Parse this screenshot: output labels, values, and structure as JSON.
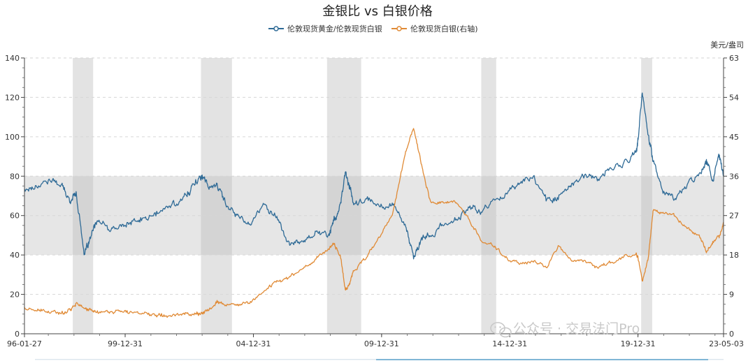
{
  "chart_data": {
    "type": "line",
    "title": "金银比 vs 白银价格",
    "legend": {
      "placement": "top-center"
    },
    "series": [
      {
        "name": "伦敦现货黄金/伦敦现货白银",
        "axis": "left",
        "color": "#2e6a96",
        "x": [
          "1996-01-27",
          "1996-07",
          "1997-01",
          "1997-07",
          "1997-11",
          "1998-02",
          "1998-06",
          "1998-08",
          "1998-12",
          "1999-06",
          "1999-12",
          "2000-06",
          "2000-12",
          "2001-06",
          "2001-12",
          "2002-06",
          "2002-10",
          "2003-01",
          "2003-04",
          "2003-08",
          "2003-12",
          "2004-06",
          "2004-12",
          "2005-06",
          "2005-12",
          "2006-06",
          "2006-12",
          "2007-06",
          "2007-12",
          "2008-03",
          "2008-06",
          "2008-08",
          "2008-10",
          "2008-12",
          "2009-06",
          "2009-12",
          "2010-06",
          "2010-12",
          "2011-04",
          "2011-08",
          "2011-12",
          "2012-06",
          "2012-12",
          "2013-06",
          "2013-12",
          "2014-06",
          "2014-12",
          "2015-06",
          "2015-12",
          "2016-06",
          "2016-12",
          "2017-06",
          "2017-12",
          "2018-06",
          "2018-12",
          "2019-06",
          "2019-12",
          "2020-01",
          "2020-03",
          "2020-06",
          "2020-08",
          "2021-01",
          "2021-06",
          "2021-12",
          "2022-06",
          "2022-09",
          "2022-12",
          "2023-03",
          "2023-05-03"
        ],
        "values": [
          73,
          75,
          78,
          76,
          67,
          72,
          40,
          46,
          58,
          52,
          55,
          57,
          59,
          62,
          66,
          70,
          78,
          80,
          74,
          76,
          66,
          60,
          56,
          66,
          59,
          45,
          47,
          52,
          50,
          58,
          66,
          82,
          75,
          65,
          68,
          65,
          66,
          56,
          38,
          48,
          50,
          55,
          58,
          64,
          62,
          68,
          72,
          77,
          80,
          68,
          70,
          76,
          80,
          78,
          84,
          86,
          92,
          98,
          122,
          100,
          88,
          72,
          68,
          76,
          82,
          88,
          78,
          90,
          80
        ]
      },
      {
        "name": "伦敦现货白银(右轴)",
        "axis": "right",
        "color": "#e08a35",
        "x": [
          "1996-01-27",
          "1996-07",
          "1997-01",
          "1997-07",
          "1997-11",
          "1998-02",
          "1998-06",
          "1998-08",
          "1998-12",
          "1999-06",
          "1999-12",
          "2000-06",
          "2000-12",
          "2001-06",
          "2001-12",
          "2002-06",
          "2002-10",
          "2003-01",
          "2003-04",
          "2003-08",
          "2003-12",
          "2004-06",
          "2004-12",
          "2005-06",
          "2005-12",
          "2006-06",
          "2006-12",
          "2007-06",
          "2007-12",
          "2008-03",
          "2008-06",
          "2008-08",
          "2008-10",
          "2008-12",
          "2009-06",
          "2009-12",
          "2010-06",
          "2010-12",
          "2011-04",
          "2011-08",
          "2011-12",
          "2012-06",
          "2012-12",
          "2013-06",
          "2013-12",
          "2014-06",
          "2014-12",
          "2015-06",
          "2015-12",
          "2016-06",
          "2016-12",
          "2017-06",
          "2017-12",
          "2018-06",
          "2018-12",
          "2019-06",
          "2019-12",
          "2020-01",
          "2020-03",
          "2020-06",
          "2020-08",
          "2021-01",
          "2021-06",
          "2021-12",
          "2022-06",
          "2022-09",
          "2022-12",
          "2023-03",
          "2023-05-03"
        ],
        "values": [
          5.9,
          5.2,
          5.0,
          4.6,
          5.6,
          7.0,
          5.8,
          5.4,
          5.1,
          5.0,
          5.0,
          4.8,
          4.6,
          4.5,
          4.3,
          4.6,
          4.6,
          4.7,
          5.2,
          7.5,
          6.5,
          6.5,
          7.3,
          9.8,
          12.0,
          13.0,
          14.8,
          17.0,
          19.4,
          20.5,
          17.2,
          10.0,
          11.5,
          14.5,
          17.5,
          22.0,
          27.0,
          41.0,
          47.0,
          38.0,
          30.0,
          30.0,
          30.0,
          26.0,
          21.0,
          20.0,
          17.0,
          16.0,
          16.5,
          15.2,
          20.0,
          16.5,
          16.8,
          15.2,
          16.2,
          17.5,
          18.2,
          17.5,
          12.0,
          18.0,
          28.0,
          27.5,
          27.0,
          24.0,
          22.0,
          18.5,
          21.0,
          22.0,
          25.5
        ]
      }
    ],
    "xlim": [
      "1996-01-27",
      "2023-05-03"
    ],
    "x_tick_labels": [
      {
        "date": "1996-01-27",
        "label": "96-01-27"
      },
      {
        "date": "1999-12-31",
        "label": "99-12-31"
      },
      {
        "date": "2004-12-31",
        "label": "04-12-31"
      },
      {
        "date": "2009-12-31",
        "label": "09-12-31"
      },
      {
        "date": "2014-12-31",
        "label": "14-12-31"
      },
      {
        "date": "2019-12-31",
        "label": "19-12-31"
      },
      {
        "date": "2023-05-03",
        "label": "23-05-03"
      }
    ],
    "y_left": {
      "lim": [
        0,
        140
      ],
      "ticks": [
        0,
        20,
        40,
        60,
        80,
        100,
        120,
        140
      ]
    },
    "y_right": {
      "lim": [
        0,
        63
      ],
      "ticks": [
        0,
        9,
        18,
        27,
        36,
        45,
        54,
        63
      ],
      "unit": "美元/盎司"
    },
    "band": {
      "axis": "left",
      "from": 40,
      "to": 80
    },
    "shaded_periods": [
      [
        "1997-12-15",
        "1998-10-01"
      ],
      [
        "2002-12-15",
        "2004-03-01"
      ],
      [
        "2007-11-15",
        "2009-03-15"
      ],
      [
        "2013-11-20",
        "2014-06-20"
      ],
      [
        "2020-02-15",
        "2020-07-20"
      ]
    ],
    "grid": "horizontal-dashed",
    "watermark": "公众号 · 交易法门Pro"
  }
}
